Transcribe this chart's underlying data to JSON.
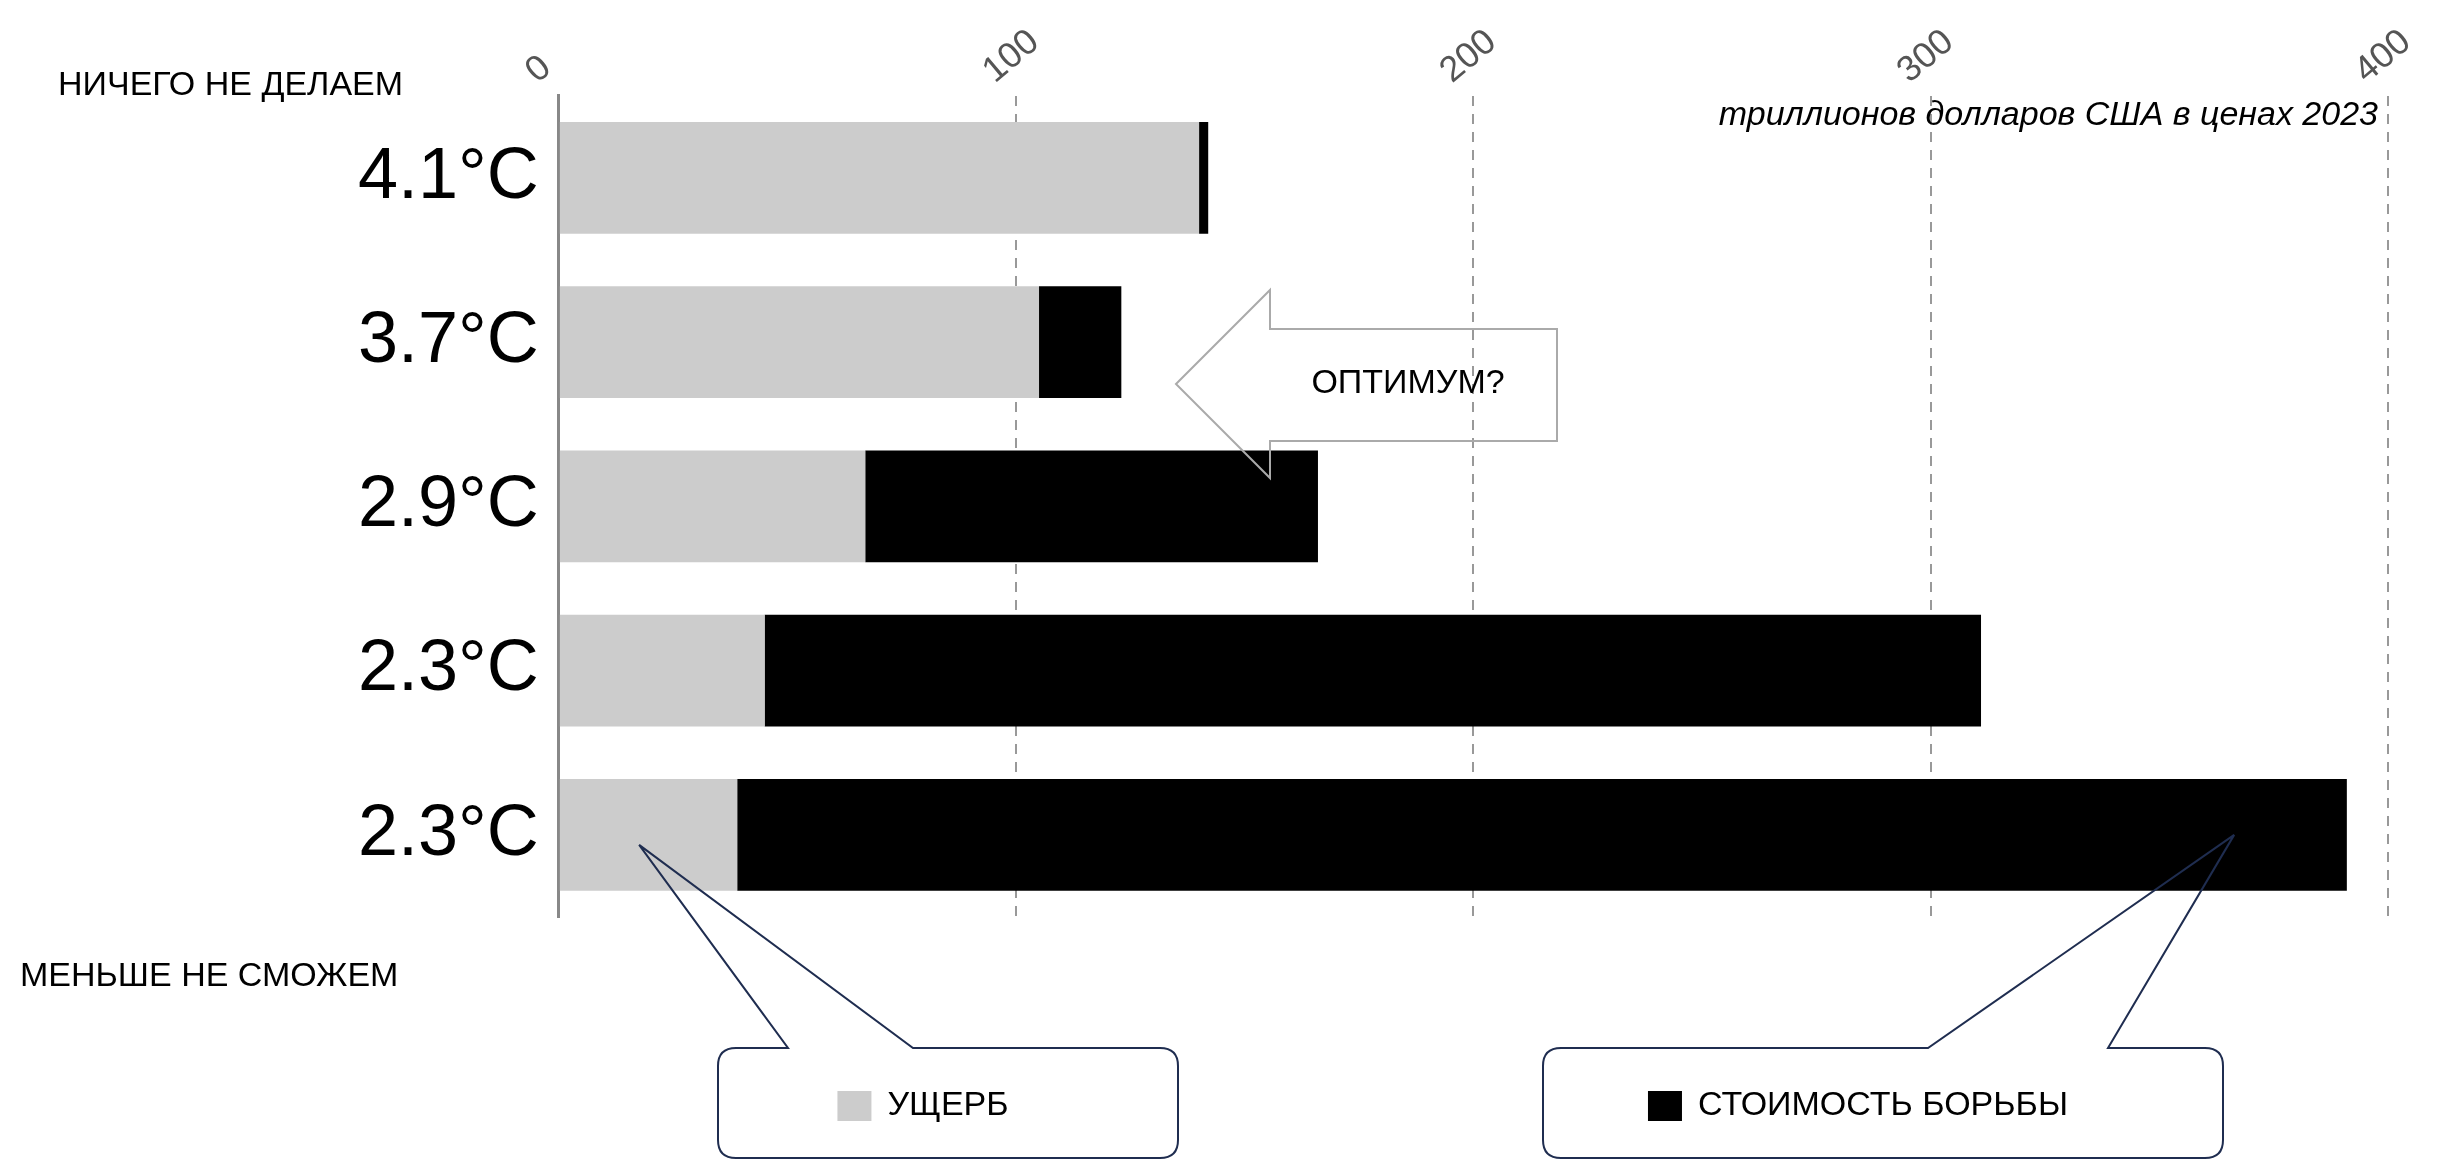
{
  "chart_data": {
    "type": "bar",
    "orientation": "horizontal",
    "stacked": true,
    "xlabel": "триллионов долларов США в ценах 2023",
    "categories": [
      "4.1°C",
      "3.7°C",
      "2.9°C",
      "2.3°C",
      "2.3°C"
    ],
    "series": [
      {
        "name": "УЩЕРБ",
        "color": "#cccccc",
        "values": [
          140,
          105,
          67,
          45,
          39
        ]
      },
      {
        "name": "СТОИМОСТЬ БОРЬБЫ",
        "color": "#000000",
        "values": [
          2,
          18,
          99,
          266,
          352
        ]
      }
    ],
    "xlim": [
      0,
      400
    ],
    "xticks": [
      0,
      100,
      200,
      300,
      400
    ],
    "grid": "x",
    "legend": "bottom",
    "annotations": [
      "НИЧЕГО НЕ ДЕЛАЕМ",
      "МЕНЬШЕ НЕ СМОЖЕМ",
      "ОПТИМУМ?"
    ]
  }
}
